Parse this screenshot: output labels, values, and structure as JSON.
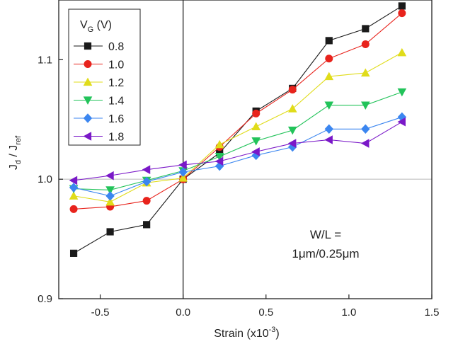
{
  "chart_data": {
    "type": "line",
    "xlabel": {
      "base": "Strain (x10",
      "sup": "-3",
      "end": ")"
    },
    "ylabel": {
      "j": "J",
      "d_sub": "d",
      "sep": " / J",
      "ref_sub": "ref"
    },
    "xlim": [
      -0.75,
      1.5
    ],
    "ylim": [
      0.9,
      1.15
    ],
    "x_ticks": [
      -0.5,
      0.0,
      0.5,
      1.0,
      1.5
    ],
    "x_tick_labels": [
      "-0.5",
      "0.0",
      "0.5",
      "1.0",
      "1.5"
    ],
    "y_ticks": [
      0.9,
      1.0,
      1.1
    ],
    "y_tick_labels": [
      "0.9",
      "1.0",
      "1.1"
    ],
    "reference_line": {
      "x": 0.0,
      "y": 1.0
    },
    "legend": {
      "title_main": "V",
      "title_sub": "G",
      "title_unit": " (V)",
      "placement": "top-left"
    },
    "annotation": {
      "line1": "W/L =",
      "line2": "1μm/0.25μm"
    },
    "x": [
      -0.66,
      -0.44,
      -0.22,
      0.0,
      0.22,
      0.44,
      0.66,
      0.88,
      1.1,
      1.32
    ],
    "series": [
      {
        "name": "0.8",
        "color": "#1a1a1a",
        "marker": "square",
        "values": [
          0.938,
          0.956,
          0.962,
          1.0,
          1.022,
          1.057,
          1.076,
          1.116,
          1.126,
          1.145
        ]
      },
      {
        "name": "1.0",
        "color": "#e8231c",
        "marker": "circle",
        "values": [
          0.975,
          0.977,
          0.982,
          1.0,
          1.027,
          1.055,
          1.075,
          1.101,
          1.113,
          1.139
        ]
      },
      {
        "name": "1.2",
        "color": "#e0dc1a",
        "marker": "triangle-up",
        "values": [
          0.986,
          0.981,
          0.997,
          1.001,
          1.029,
          1.044,
          1.059,
          1.086,
          1.089,
          1.106
        ]
      },
      {
        "name": "1.4",
        "color": "#22c35a",
        "marker": "triangle-down",
        "values": [
          0.992,
          0.991,
          0.999,
          1.007,
          1.019,
          1.032,
          1.041,
          1.062,
          1.062,
          1.073
        ]
      },
      {
        "name": "1.6",
        "color": "#3b86f0",
        "marker": "diamond",
        "values": [
          0.993,
          0.986,
          0.998,
          1.006,
          1.011,
          1.02,
          1.027,
          1.042,
          1.042,
          1.052
        ]
      },
      {
        "name": "1.8",
        "color": "#7a18c8",
        "marker": "triangle-left",
        "values": [
          0.999,
          1.003,
          1.008,
          1.012,
          1.015,
          1.023,
          1.03,
          1.033,
          1.03,
          1.048
        ]
      }
    ]
  }
}
